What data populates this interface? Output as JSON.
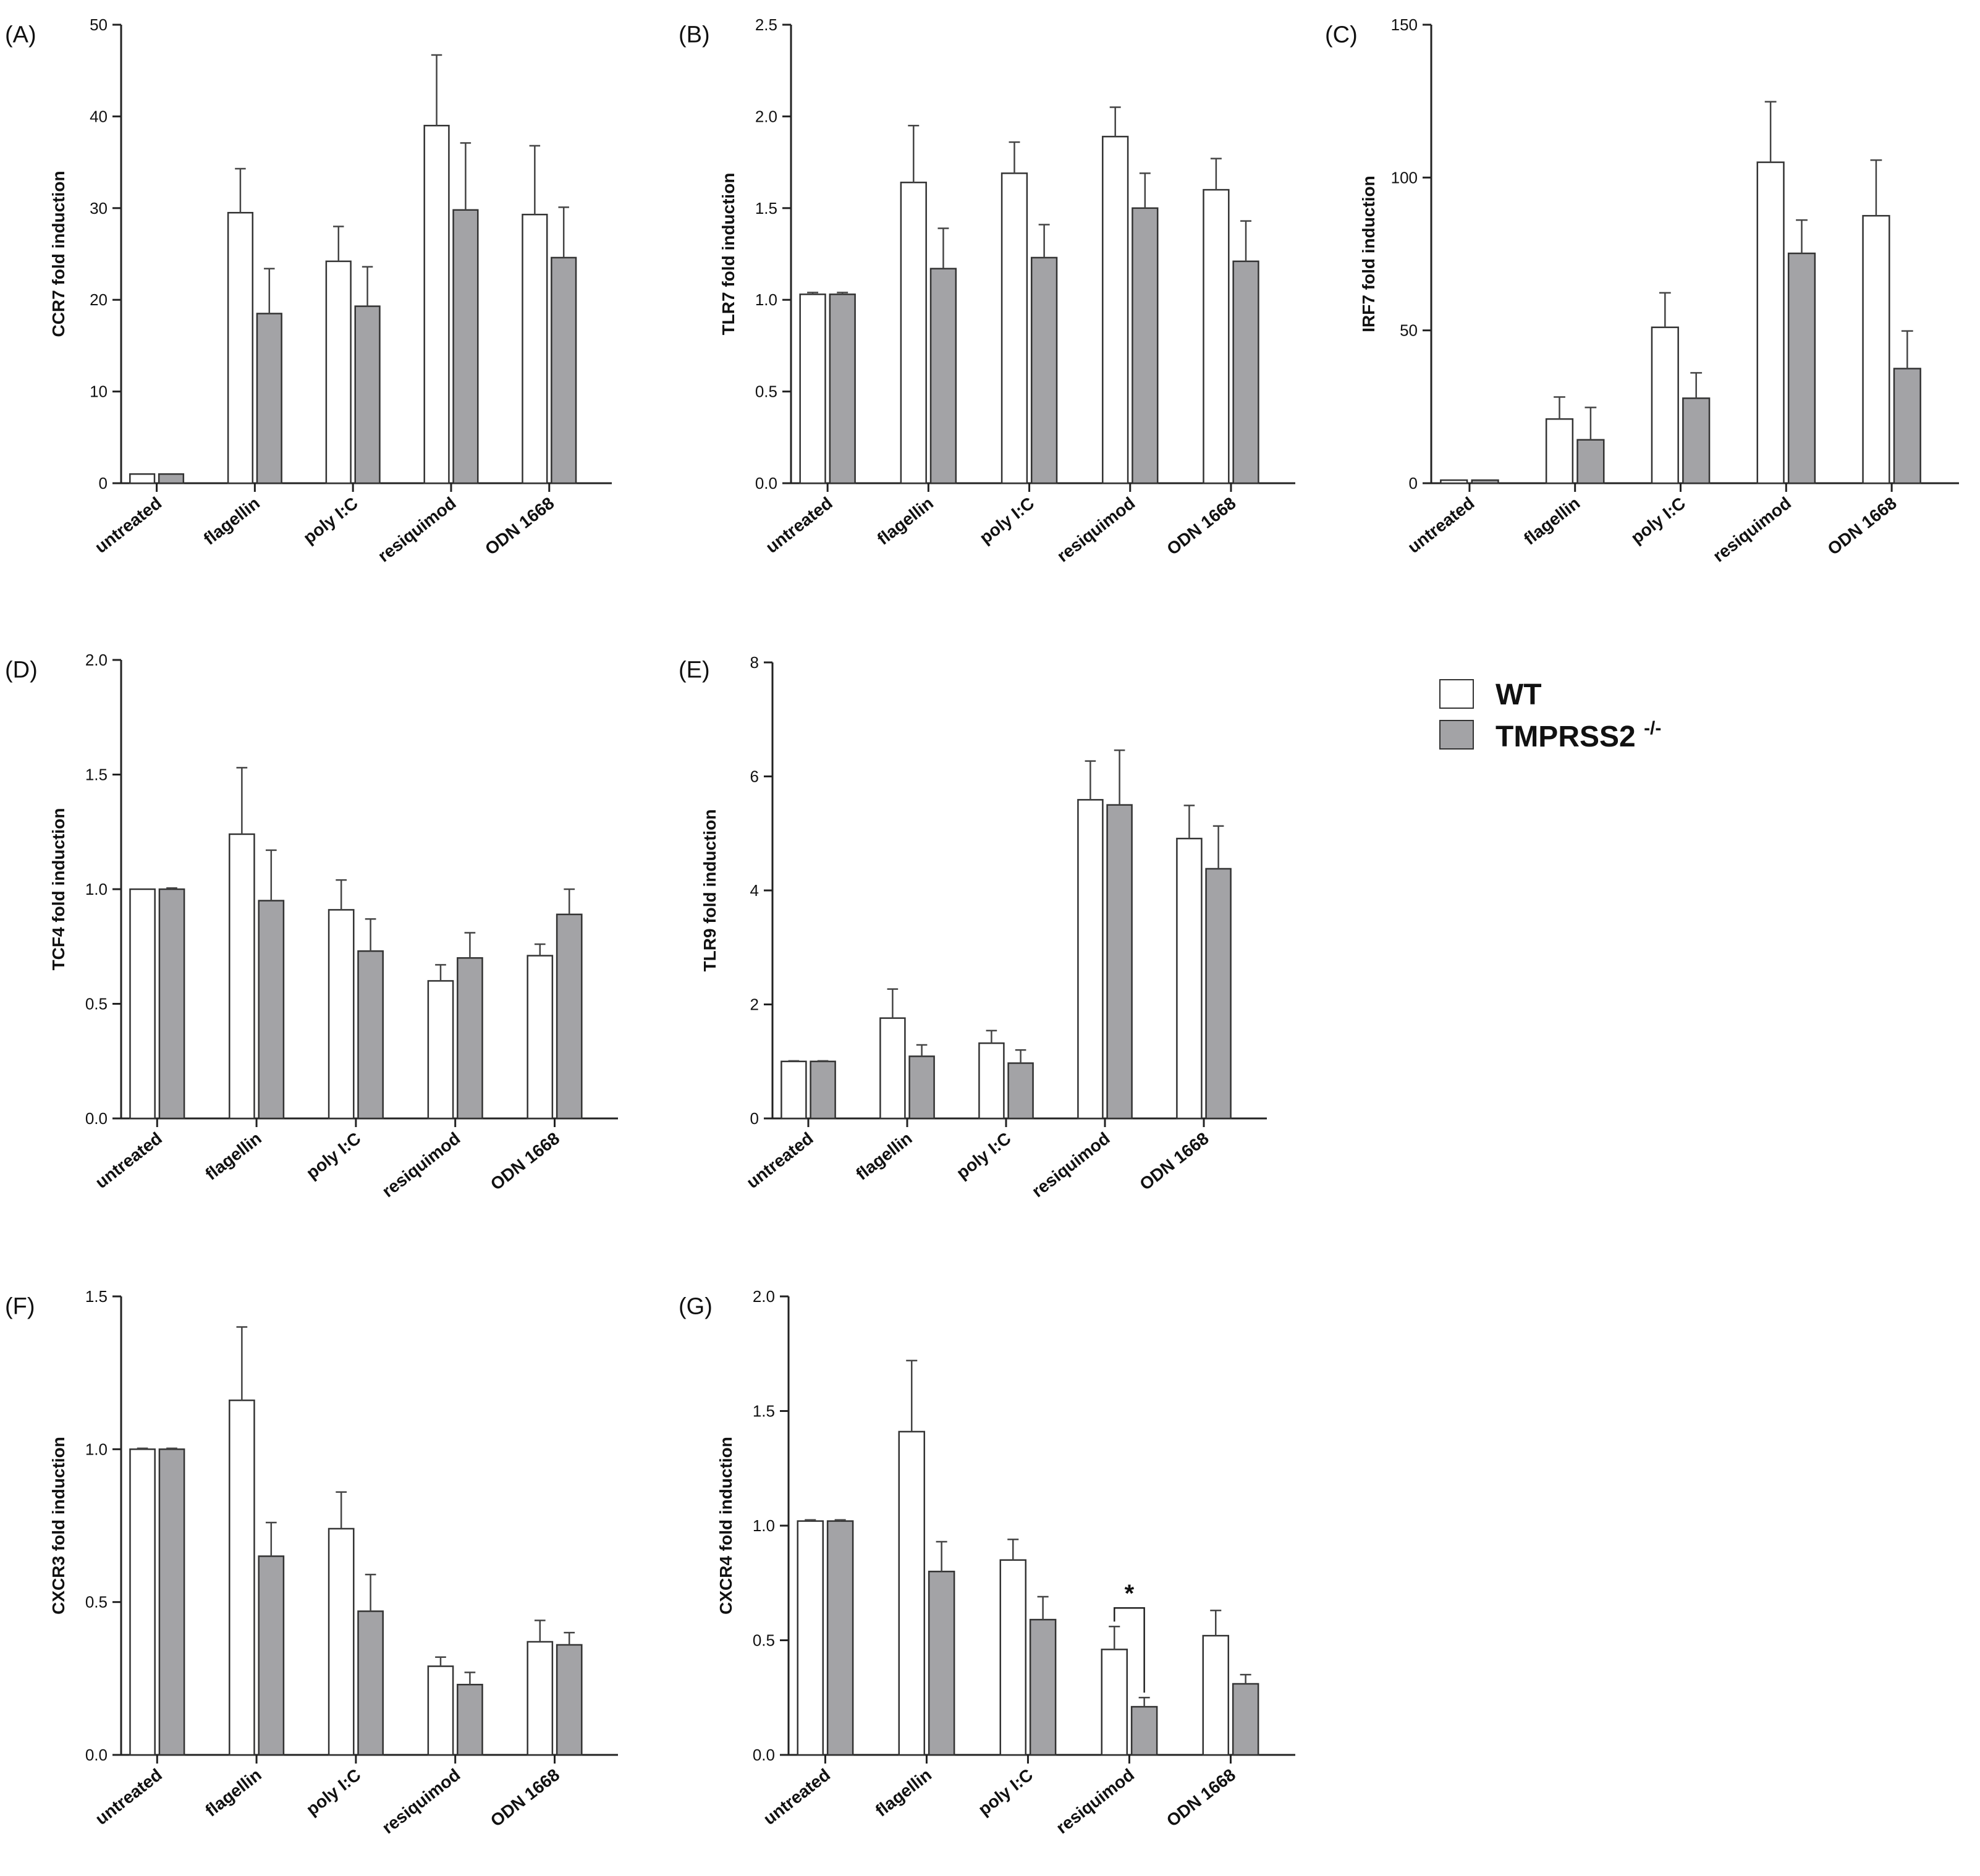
{
  "legend": {
    "wt_label": "WT",
    "tmprss_label": "TMPRSS2",
    "tmprss_superscript": "-/-",
    "wt_color": "#ffffff",
    "tmprss_color": "#a3a3a6"
  },
  "chart_data": [
    {
      "panel": "(A)",
      "type": "bar",
      "ylabel": "CCR7 fold induction",
      "ylim": [
        0,
        50
      ],
      "yticks": [
        "0",
        "10",
        "20",
        "30",
        "40",
        "50"
      ],
      "ytick_values": [
        0,
        10,
        20,
        30,
        40,
        50
      ],
      "categories": [
        "untreated",
        "flagellin",
        "poly I:C",
        "resiquimod",
        "ODN 1668"
      ],
      "series": [
        {
          "name": "WT",
          "values": [
            1.0,
            29.5,
            24.2,
            39.0,
            29.3
          ],
          "errors": [
            0,
            4.8,
            3.8,
            7.7,
            7.5
          ]
        },
        {
          "name": "TMPRSS2-/-",
          "values": [
            1.0,
            18.5,
            19.3,
            29.8,
            24.6
          ],
          "errors": [
            0,
            4.9,
            4.3,
            7.3,
            5.5
          ]
        }
      ]
    },
    {
      "panel": "(B)",
      "type": "bar",
      "ylabel": "TLR7 fold induction",
      "ylim": [
        0,
        2.5
      ],
      "yticks": [
        "0.0",
        "0.5",
        "1.0",
        "1.5",
        "2.0",
        "2.5"
      ],
      "ytick_values": [
        0,
        0.5,
        1.0,
        1.5,
        2.0,
        2.5
      ],
      "categories": [
        "untreated",
        "flagellin",
        "poly I:C",
        "resiquimod",
        "ODN 1668"
      ],
      "series": [
        {
          "name": "WT",
          "values": [
            1.03,
            1.64,
            1.69,
            1.89,
            1.6
          ],
          "errors": [
            0.01,
            0.31,
            0.17,
            0.16,
            0.17
          ]
        },
        {
          "name": "TMPRSS2-/-",
          "values": [
            1.03,
            1.17,
            1.23,
            1.5,
            1.21
          ],
          "errors": [
            0.01,
            0.22,
            0.18,
            0.19,
            0.22
          ]
        }
      ]
    },
    {
      "panel": "(C)",
      "type": "bar",
      "ylabel": "IRF7 fold induction",
      "ylim": [
        0,
        150
      ],
      "yticks": [
        "0",
        "50",
        "100",
        "150"
      ],
      "ytick_values": [
        0,
        50,
        100,
        150
      ],
      "categories": [
        "untreated",
        "flagellin",
        "poly I:C",
        "resiquimod",
        "ODN 1668"
      ],
      "series": [
        {
          "name": "WT",
          "values": [
            1.0,
            21.0,
            51.0,
            105.0,
            87.5
          ],
          "errors": [
            0,
            7.2,
            11.3,
            19.8,
            18.2
          ]
        },
        {
          "name": "TMPRSS2-/-",
          "values": [
            1.0,
            14.2,
            27.8,
            75.2,
            37.5
          ],
          "errors": [
            0,
            10.6,
            8.3,
            10.9,
            12.3
          ]
        }
      ]
    },
    {
      "panel": "(D)",
      "type": "bar",
      "ylabel": "TCF4 fold induction",
      "ylim": [
        0,
        2.0
      ],
      "yticks": [
        "0.0",
        "0.5",
        "1.0",
        "1.5",
        "2.0"
      ],
      "ytick_values": [
        0,
        0.5,
        1.0,
        1.5,
        2.0
      ],
      "categories": [
        "untreated",
        "flagellin",
        "poly I:C",
        "resiquimod",
        "ODN 1668"
      ],
      "series": [
        {
          "name": "WT",
          "values": [
            1.0,
            1.24,
            0.91,
            0.6,
            0.71
          ],
          "errors": [
            0,
            0.29,
            0.13,
            0.07,
            0.05
          ]
        },
        {
          "name": "TMPRSS2-/-",
          "values": [
            1.0,
            0.95,
            0.73,
            0.7,
            0.89
          ],
          "errors": [
            0.005,
            0.22,
            0.14,
            0.11,
            0.11
          ]
        }
      ]
    },
    {
      "panel": "(E)",
      "type": "bar",
      "ylabel": "TLR9 fold induction",
      "ylim": [
        0,
        8
      ],
      "yticks": [
        "0",
        "2",
        "4",
        "6",
        "8"
      ],
      "ytick_values": [
        0,
        2,
        4,
        6,
        8
      ],
      "categories": [
        "untreated",
        "flagellin",
        "poly I:C",
        "resiquimod",
        "ODN 1668"
      ],
      "series": [
        {
          "name": "WT",
          "values": [
            1.0,
            1.76,
            1.32,
            5.59,
            4.91
          ],
          "errors": [
            0.01,
            0.51,
            0.22,
            0.68,
            0.58
          ]
        },
        {
          "name": "TMPRSS2-/-",
          "values": [
            1.0,
            1.09,
            0.97,
            5.5,
            4.38
          ],
          "errors": [
            0.01,
            0.2,
            0.23,
            0.96,
            0.75
          ]
        }
      ]
    },
    {
      "panel": "(F)",
      "type": "bar",
      "ylabel": "CXCR3 fold induction",
      "ylim": [
        0,
        1.5
      ],
      "yticks": [
        "0.0",
        "0.5",
        "1.0",
        "1.5"
      ],
      "ytick_values": [
        0,
        0.5,
        1.0,
        1.5
      ],
      "categories": [
        "untreated",
        "flagellin",
        "poly I:C",
        "resiquimod",
        "ODN 1668"
      ],
      "series": [
        {
          "name": "WT",
          "values": [
            1.0,
            1.16,
            0.74,
            0.29,
            0.37
          ],
          "errors": [
            0.003,
            0.24,
            0.12,
            0.03,
            0.07
          ]
        },
        {
          "name": "TMPRSS2-/-",
          "values": [
            1.0,
            0.65,
            0.47,
            0.23,
            0.36
          ],
          "errors": [
            0.003,
            0.11,
            0.12,
            0.04,
            0.04
          ]
        }
      ]
    },
    {
      "panel": "(G)",
      "type": "bar",
      "ylabel": "CXCR4 fold induction",
      "ylim": [
        0,
        2.0
      ],
      "yticks": [
        "0.0",
        "0.5",
        "1.0",
        "1.5",
        "2.0"
      ],
      "ytick_values": [
        0,
        0.5,
        1.0,
        1.5,
        2.0
      ],
      "categories": [
        "untreated",
        "flagellin",
        "poly I:C",
        "resiquimod",
        "ODN 1668"
      ],
      "series": [
        {
          "name": "WT",
          "values": [
            1.02,
            1.41,
            0.85,
            0.46,
            0.52
          ],
          "errors": [
            0.005,
            0.31,
            0.09,
            0.1,
            0.11
          ]
        },
        {
          "name": "TMPRSS2-/-",
          "values": [
            1.02,
            0.8,
            0.59,
            0.21,
            0.31
          ],
          "errors": [
            0.005,
            0.13,
            0.1,
            0.04,
            0.04
          ]
        }
      ],
      "annotation": {
        "text": "*",
        "category": "resiquimod"
      }
    }
  ]
}
